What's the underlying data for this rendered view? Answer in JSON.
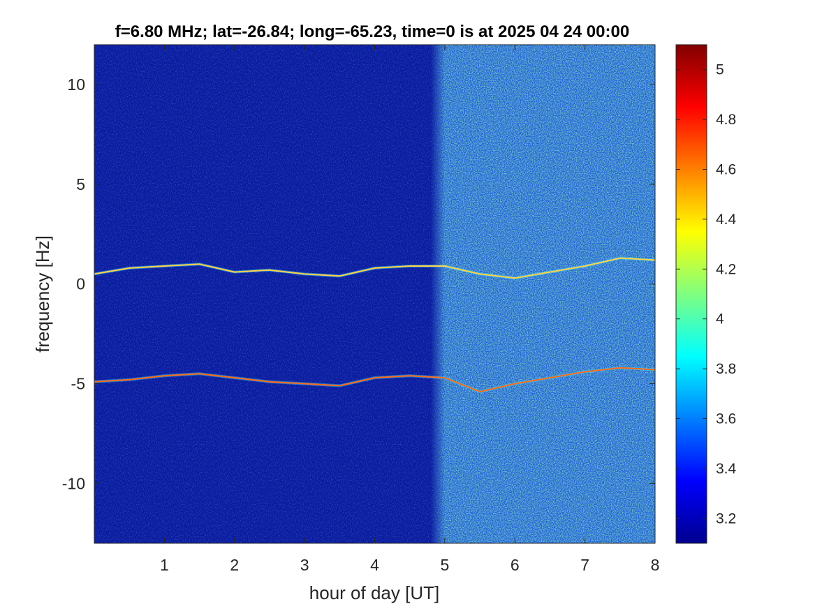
{
  "chart_data": {
    "type": "heatmap",
    "title": "f=6.80 MHz;  lat=-26.84; long=-65.23, time=0 is at 2025 04 24 00:00",
    "xlabel": "hour of day [UT]",
    "ylabel": "frequency [Hz]",
    "xlim": [
      0,
      8
    ],
    "ylim": [
      -13,
      12
    ],
    "xticks": [
      "1",
      "2",
      "3",
      "4",
      "5",
      "6",
      "7",
      "8"
    ],
    "yticks": [
      "-10",
      "-5",
      "0",
      "5",
      "10"
    ],
    "colorbar": {
      "colormap": "jet",
      "range": [
        3.1,
        5.1
      ],
      "ticks": [
        "3.2",
        "3.4",
        "3.6",
        "3.8",
        "4",
        "4.2",
        "4.4",
        "4.6",
        "4.8",
        "5"
      ]
    },
    "series": [
      {
        "x": [
          0,
          0.5,
          1.0,
          1.5,
          2.0,
          2.5,
          3.0,
          3.5,
          4.0,
          4.5,
          5.0,
          5.5,
          6.0,
          6.5,
          7.0,
          7.5,
          8.0
        ],
        "values": [
          0.5,
          0.8,
          0.9,
          1.0,
          0.6,
          0.7,
          0.5,
          0.4,
          0.8,
          0.9,
          0.9,
          0.5,
          0.3,
          0.6,
          0.9,
          1.3,
          1.2
        ]
      },
      {
        "x": [
          0,
          0.5,
          1.0,
          1.5,
          2.0,
          2.5,
          3.0,
          3.5,
          4.0,
          4.5,
          5.0,
          5.5,
          6.0,
          6.5,
          7.0,
          7.5,
          8.0
        ],
        "values": [
          -4.9,
          -4.8,
          -4.6,
          -4.5,
          -4.7,
          -4.9,
          -5.0,
          -5.1,
          -4.7,
          -4.6,
          -4.7,
          -5.4,
          -5.0,
          -4.7,
          -4.4,
          -4.2,
          -4.3
        ]
      }
    ]
  }
}
